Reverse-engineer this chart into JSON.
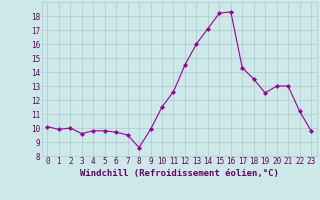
{
  "x": [
    0,
    1,
    2,
    3,
    4,
    5,
    6,
    7,
    8,
    9,
    10,
    11,
    12,
    13,
    14,
    15,
    16,
    17,
    18,
    19,
    20,
    21,
    22,
    23
  ],
  "y": [
    10.1,
    9.9,
    10.0,
    9.6,
    9.8,
    9.8,
    9.7,
    9.5,
    8.6,
    9.9,
    11.5,
    12.6,
    14.5,
    16.0,
    17.1,
    18.2,
    18.3,
    14.3,
    13.5,
    12.5,
    13.0,
    13.0,
    11.2,
    9.8
  ],
  "line_color": "#990099",
  "marker": "D",
  "marker_size": 2,
  "bg_color": "#cce8e8",
  "grid_color": "#aacaca",
  "xlabel": "Windchill (Refroidissement éolien,°C)",
  "ylabel": "",
  "xlim": [
    -0.5,
    23.5
  ],
  "ylim": [
    8,
    19
  ],
  "yticks": [
    8,
    9,
    10,
    11,
    12,
    13,
    14,
    15,
    16,
    17,
    18
  ],
  "xticks": [
    0,
    1,
    2,
    3,
    4,
    5,
    6,
    7,
    8,
    9,
    10,
    11,
    12,
    13,
    14,
    15,
    16,
    17,
    18,
    19,
    20,
    21,
    22,
    23
  ],
  "tick_fontsize": 5.5,
  "xlabel_fontsize": 6.5,
  "label_color": "#660066"
}
